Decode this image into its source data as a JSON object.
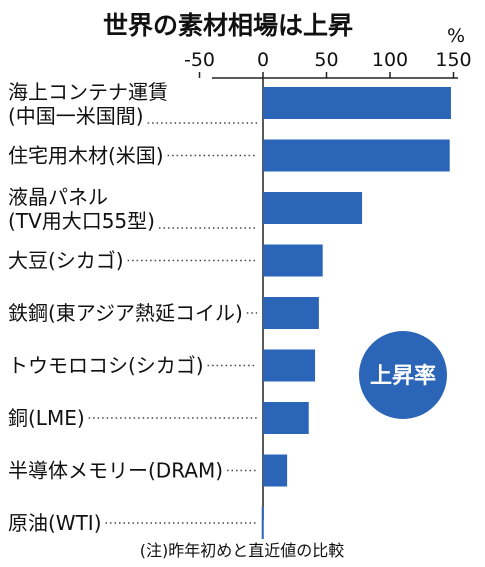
{
  "chart_data": {
    "type": "bar",
    "orientation": "horizontal",
    "title": "世界の素材相場は上昇",
    "unit": "%",
    "xlim": [
      -50,
      150
    ],
    "xticks": [
      -50,
      0,
      50,
      100,
      150
    ],
    "tick_labels": [
      "-50",
      "0",
      "50",
      "100",
      "150"
    ],
    "categories": [
      [
        "海上コンテナ運賃",
        "(中国一米国間)"
      ],
      [
        "住宅用木材(米国)"
      ],
      [
        "液晶パネル",
        "(TV用大口55型)"
      ],
      [
        "大豆(シカゴ)"
      ],
      [
        "鉄鋼(東アジア熱延コイル)"
      ],
      [
        "トウモロコシ(シカゴ)"
      ],
      [
        "銅(LME)"
      ],
      [
        "半導体メモリー(DRAM)"
      ],
      [
        "原油(WTI)"
      ]
    ],
    "values": [
      148,
      147,
      78,
      47,
      44,
      41,
      36,
      19,
      -1
    ],
    "bar_color": "#2b65b8",
    "badge": "上昇率",
    "note": "(注)昨年初めと直近値の比較"
  }
}
